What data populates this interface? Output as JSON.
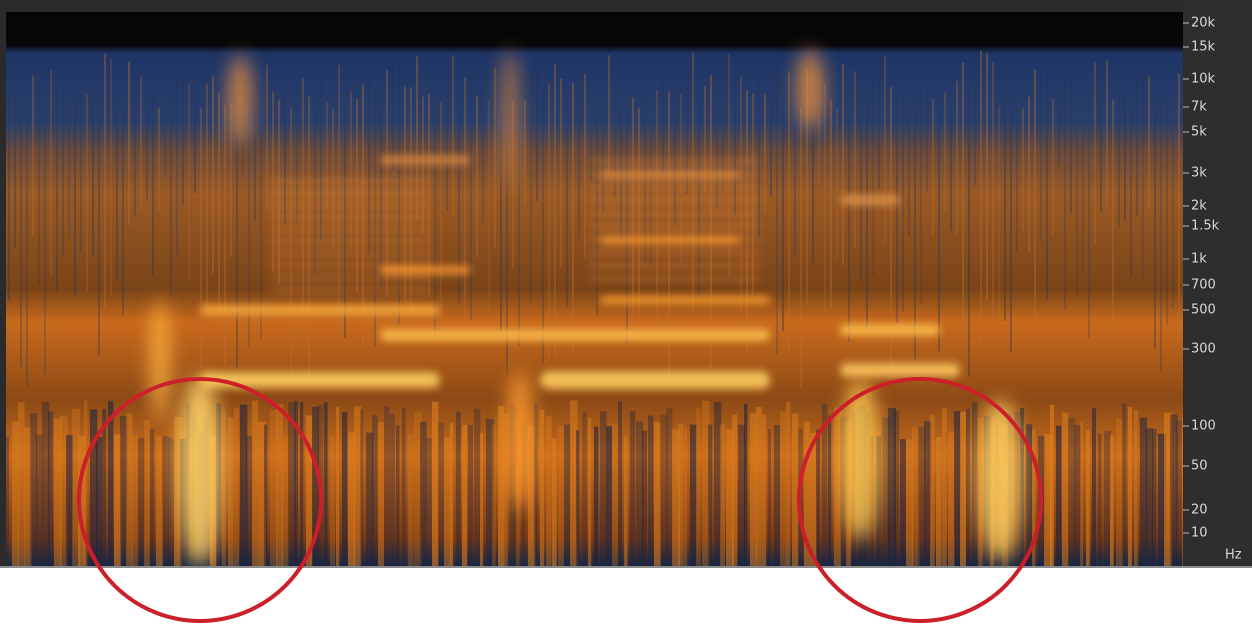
{
  "frequency_axis": {
    "ticks": [
      "20k",
      "15k",
      "10k",
      "7k",
      "5k",
      "3k",
      "2k",
      "1.5k",
      "1k",
      "700",
      "500",
      "300",
      "100",
      "50",
      "20",
      "10"
    ],
    "unit": "Hz"
  }
}
